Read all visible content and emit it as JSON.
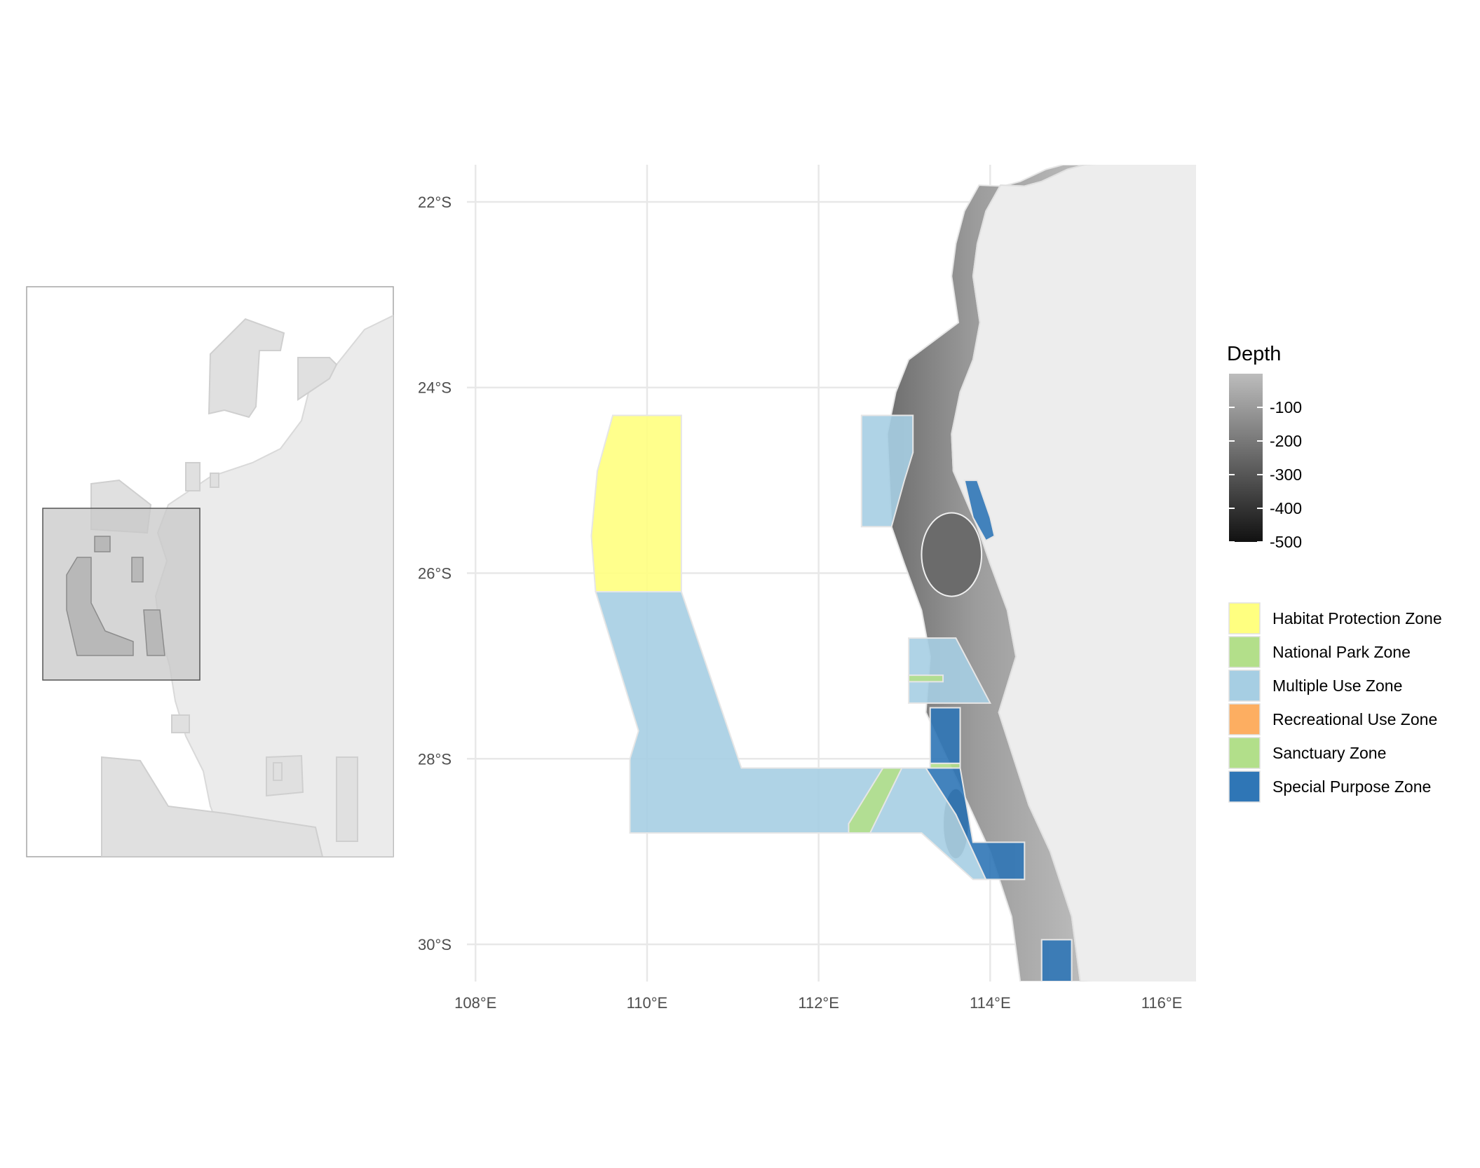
{
  "chart_data": {
    "type": "map",
    "x_axis": {
      "range": [
        107.9,
        116.4
      ],
      "ticks": [
        {
          "value": 108,
          "label": "108°E"
        },
        {
          "value": 110,
          "label": "110°E"
        },
        {
          "value": 112,
          "label": "112°E"
        },
        {
          "value": 114,
          "label": "114°E"
        },
        {
          "value": 116,
          "label": "116°E"
        }
      ]
    },
    "y_axis": {
      "range": [
        -30.4,
        -21.6
      ],
      "ticks": [
        {
          "value": -22,
          "label": "22°S"
        },
        {
          "value": -24,
          "label": "24°S"
        },
        {
          "value": -26,
          "label": "26°S"
        },
        {
          "value": -28,
          "label": "28°S"
        },
        {
          "value": -30,
          "label": "30°S"
        }
      ]
    },
    "grid": true,
    "depth_legend": {
      "title": "Depth",
      "range": [
        -500,
        0
      ],
      "ticks": [
        {
          "value": -100,
          "label": "-100"
        },
        {
          "value": -200,
          "label": "-200"
        },
        {
          "value": -300,
          "label": "-300"
        },
        {
          "value": -400,
          "label": "-400"
        },
        {
          "value": -500,
          "label": "-500"
        }
      ],
      "color_low": "#111111",
      "color_high": "#bdbdbd"
    },
    "zone_legend": [
      {
        "label": "Habitat Protection Zone",
        "color": "#ffff80"
      },
      {
        "label": "National Park Zone",
        "color": "#b3df8a"
      },
      {
        "label": "Multiple Use Zone",
        "color": "#a6cee3"
      },
      {
        "label": "Recreational Use Zone",
        "color": "#fdae61"
      },
      {
        "label": "Sanctuary Zone",
        "color": "#b2df8a"
      },
      {
        "label": "Special Purpose Zone",
        "color": "#2f76b6"
      }
    ],
    "zones": [
      {
        "zone": "Habitat Protection Zone",
        "coords": [
          [
            109.6,
            -24.3
          ],
          [
            110.4,
            -24.3
          ],
          [
            110.4,
            -26.2
          ],
          [
            109.4,
            -26.2
          ],
          [
            109.35,
            -25.6
          ],
          [
            109.42,
            -24.9
          ]
        ]
      },
      {
        "zone": "Multiple Use Zone",
        "coords": [
          [
            109.4,
            -26.2
          ],
          [
            110.4,
            -26.2
          ],
          [
            111.1,
            -28.1
          ],
          [
            113.25,
            -28.1
          ],
          [
            113.6,
            -28.6
          ],
          [
            113.95,
            -29.3
          ],
          [
            113.8,
            -29.3
          ],
          [
            113.2,
            -28.8
          ],
          [
            109.8,
            -28.8
          ],
          [
            109.8,
            -28.0
          ],
          [
            109.9,
            -27.7
          ]
        ]
      },
      {
        "zone": "Sanctuary Zone",
        "coords": [
          [
            112.75,
            -28.1
          ],
          [
            112.97,
            -28.1
          ],
          [
            112.6,
            -28.8
          ],
          [
            112.35,
            -28.8
          ],
          [
            112.35,
            -28.7
          ]
        ]
      },
      {
        "zone": "Multiple Use Zone",
        "coords": [
          [
            112.5,
            -24.3
          ],
          [
            113.1,
            -24.3
          ],
          [
            113.1,
            -24.7
          ],
          [
            113.0,
            -25.0
          ],
          [
            112.85,
            -25.5
          ],
          [
            112.5,
            -25.5
          ]
        ]
      },
      {
        "zone": "Multiple Use Zone",
        "coords": [
          [
            113.05,
            -26.7
          ],
          [
            113.6,
            -26.7
          ],
          [
            114.0,
            -27.4
          ],
          [
            113.05,
            -27.4
          ]
        ]
      },
      {
        "zone": "Sanctuary Zone",
        "coords": [
          [
            113.05,
            -27.1
          ],
          [
            113.45,
            -27.1
          ],
          [
            113.45,
            -27.17
          ],
          [
            113.05,
            -27.17
          ]
        ]
      },
      {
        "zone": "Special Purpose Zone",
        "coords": [
          [
            113.3,
            -27.45
          ],
          [
            113.65,
            -27.45
          ],
          [
            113.65,
            -28.05
          ],
          [
            113.3,
            -28.05
          ]
        ]
      },
      {
        "zone": "Sanctuary Zone",
        "coords": [
          [
            113.3,
            -28.05
          ],
          [
            113.65,
            -28.05
          ],
          [
            113.65,
            -28.1
          ],
          [
            113.3,
            -28.1
          ]
        ]
      },
      {
        "zone": "Special Purpose Zone",
        "coords": [
          [
            113.25,
            -28.1
          ],
          [
            113.65,
            -28.1
          ],
          [
            113.8,
            -28.9
          ],
          [
            114.4,
            -28.9
          ],
          [
            114.4,
            -29.3
          ],
          [
            113.95,
            -29.3
          ],
          [
            113.6,
            -28.6
          ]
        ]
      },
      {
        "zone": "Special Purpose Zone",
        "coords": [
          [
            113.7,
            -25.0
          ],
          [
            113.85,
            -25.0
          ],
          [
            114.0,
            -25.4
          ],
          [
            114.05,
            -25.6
          ],
          [
            113.95,
            -25.65
          ],
          [
            113.8,
            -25.4
          ]
        ]
      },
      {
        "zone": "Special Purpose Zone",
        "coords": [
          [
            114.6,
            -29.95
          ],
          [
            114.95,
            -29.95
          ],
          [
            114.95,
            -30.4
          ],
          [
            114.6,
            -30.4
          ]
        ]
      }
    ],
    "coastline": [
      [
        115.1,
        -21.6
      ],
      [
        114.9,
        -21.65
      ],
      [
        114.6,
        -21.78
      ],
      [
        114.4,
        -21.83
      ],
      [
        114.12,
        -21.82
      ],
      [
        113.95,
        -22.1
      ],
      [
        113.85,
        -22.45
      ],
      [
        113.8,
        -22.8
      ],
      [
        113.88,
        -23.3
      ],
      [
        113.8,
        -23.7
      ],
      [
        113.65,
        -24.05
      ],
      [
        113.55,
        -24.5
      ],
      [
        113.57,
        -24.9
      ],
      [
        113.85,
        -25.5
      ],
      [
        114.0,
        -25.9
      ],
      [
        114.2,
        -26.4
      ],
      [
        114.3,
        -26.9
      ],
      [
        114.1,
        -27.5
      ],
      [
        114.45,
        -28.5
      ],
      [
        114.7,
        -29.0
      ],
      [
        114.95,
        -29.7
      ],
      [
        115.05,
        -30.4
      ]
    ],
    "islands": [
      {
        "name": "",
        "center": [
          113.6,
          -28.7
        ],
        "rx": 0.15,
        "ry": 0.38
      },
      {
        "name": "",
        "center": [
          113.55,
          -25.8
        ],
        "rx": 0.35,
        "ry": 0.45
      }
    ],
    "inset": {
      "frame_ticks": "none"
    }
  }
}
